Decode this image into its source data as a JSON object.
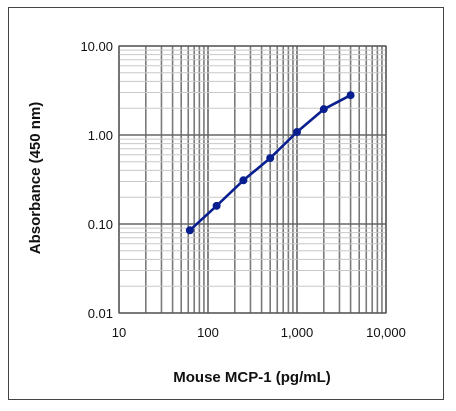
{
  "chart_data": {
    "type": "line",
    "xlabel": "Mouse MCP-1 (pg/mL)",
    "ylabel": "Absorbance (450 nm)",
    "x_scale": "log",
    "y_scale": "log",
    "xlim": [
      10,
      10000
    ],
    "ylim": [
      0.01,
      10
    ],
    "grid": true,
    "x_ticks": [
      "10",
      "100",
      "1,000",
      "10,000"
    ],
    "y_ticks": [
      "0.01",
      "0.10",
      "1.00",
      "10.00"
    ],
    "series": [
      {
        "x": [
          62.5,
          125,
          250,
          500,
          1000,
          2000,
          4000
        ],
        "y": [
          0.085,
          0.16,
          0.31,
          0.55,
          1.08,
          1.95,
          2.8
        ],
        "color": "#0a1f8f"
      }
    ]
  }
}
